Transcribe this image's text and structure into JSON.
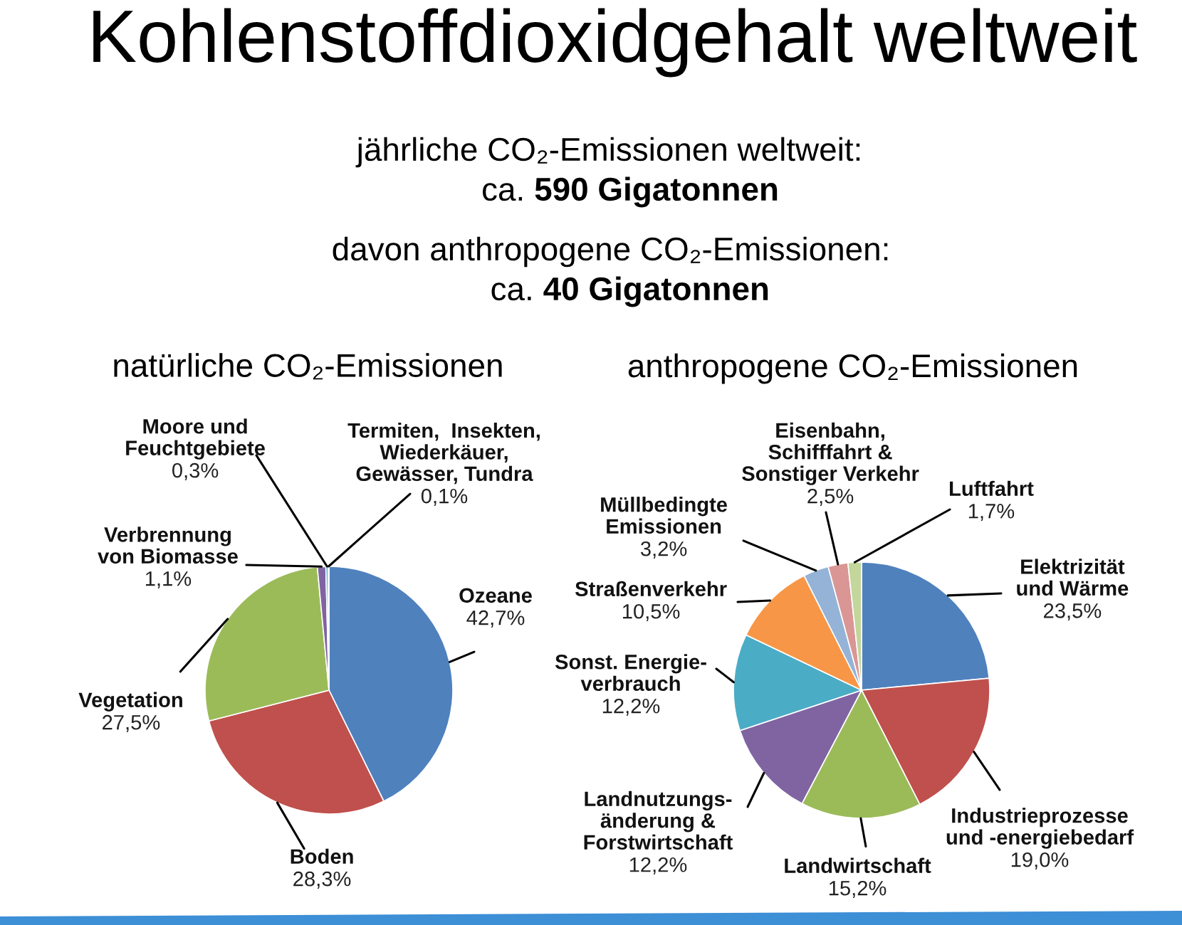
{
  "chart_data": [
    {
      "type": "other",
      "title": "Kohlenstoffdioxidgehalt weltweit",
      "annotations": [
        "jährliche CO₂-Emissionen weltweit:",
        "ca. 590 Gigatonnen",
        "davon anthropogene CO₂-Emissionen:",
        "ca. 40 Gigatonnen"
      ]
    },
    {
      "type": "pie",
      "title": "natürliche CO₂-Emissionen",
      "categories": [
        "Ozeane",
        "Boden",
        "Vegetation",
        "Verbrennung\nvon Biomasse",
        "Moore und\nFeuchtgebiete",
        "Termiten,  Insekten,\nWiederkäuer,\nGewässer, Tundra"
      ],
      "values": [
        42.7,
        28.3,
        27.5,
        1.1,
        0.3,
        0.1
      ],
      "colors": [
        "#4f81bd",
        "#c0504d",
        "#9bbb59",
        "#8064a2",
        "#4bacc6",
        "#f79646"
      ],
      "value_labels": [
        "42,7%",
        "28,3%",
        "27,5%",
        "1,1%",
        "0,3%",
        "0,1%"
      ]
    },
    {
      "type": "pie",
      "title": "anthropogene CO₂-Emissionen",
      "categories": [
        "Elektrizität\nund Wärme",
        "Industrieprozesse\nund -energiebedarf",
        "Landwirtschaft",
        "Landnutzungs-\nänderung &\nForstwirtschaft",
        "Sonst. Energie-\nverbrauch",
        "Straßenverkehr",
        "Müllbedingte\nEmissionen",
        "Eisenbahn,\nSchifffahrt &\nSonstiger Verkehr",
        "Luftfahrt"
      ],
      "values": [
        23.5,
        19.0,
        15.2,
        12.2,
        12.2,
        10.5,
        3.2,
        2.5,
        1.7
      ],
      "colors": [
        "#4f81bd",
        "#c0504d",
        "#9bbb59",
        "#8064a2",
        "#4bacc6",
        "#f79646",
        "#95b3d7",
        "#d99694",
        "#c3d69b"
      ],
      "value_labels": [
        "23,5%",
        "19,0%",
        "15,2%",
        "12,2%",
        "12,2%",
        "10,5%",
        "3,2%",
        "2,5%",
        "1,7%"
      ]
    }
  ]
}
